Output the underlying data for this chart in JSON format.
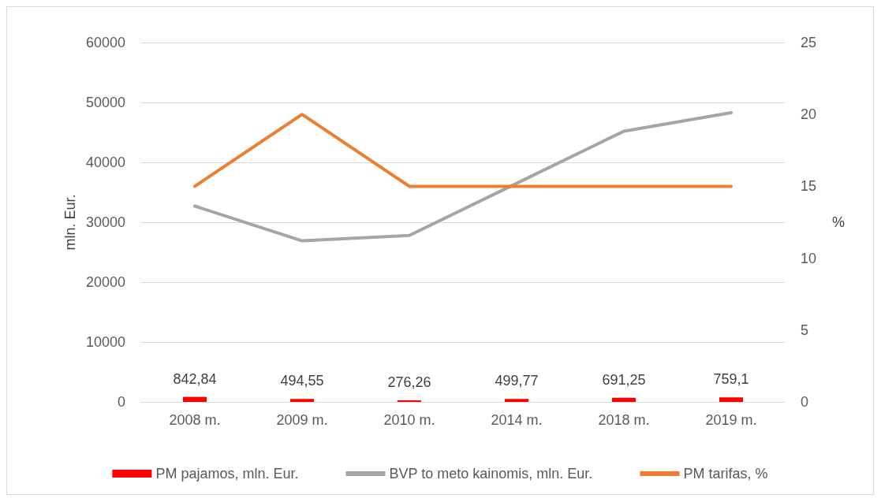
{
  "chart_data": {
    "type": "bar",
    "ylabel": "mln. Eur.",
    "y2label": "%",
    "categories": [
      "2008 m.",
      "2009 m.",
      "2010 m.",
      "2014 m.",
      "2018 m.",
      "2019 m."
    ],
    "series": [
      {
        "name": "PM pajamos, mln. Eur.",
        "color": "#ff0000",
        "values": [
          842.84,
          494.55,
          276.26,
          499.77,
          691.25,
          759.1
        ],
        "value_labels": [
          "842,84",
          "494,55",
          "276,26",
          "499,77",
          "691,25",
          "759,1"
        ]
      },
      {
        "name": "BVP to meto kainomis, mln. Eur.",
        "type": "line",
        "color": "#a5a5a5",
        "values": [
          32700,
          26900,
          27800,
          36500,
          45200,
          48300
        ]
      },
      {
        "name": "PM tarifas, %",
        "type": "line",
        "axis": "y2",
        "color": "#ed7d31",
        "values": [
          15,
          20,
          15,
          15,
          15,
          15
        ]
      }
    ],
    "ylim": [
      0,
      60000
    ],
    "yticks": [
      0,
      10000,
      20000,
      30000,
      40000,
      50000,
      60000
    ],
    "y2lim": [
      0,
      25
    ],
    "y2ticks": [
      0,
      5,
      10,
      15,
      20,
      25
    ],
    "grid": "y",
    "legend": "bottom",
    "marker": "none"
  }
}
